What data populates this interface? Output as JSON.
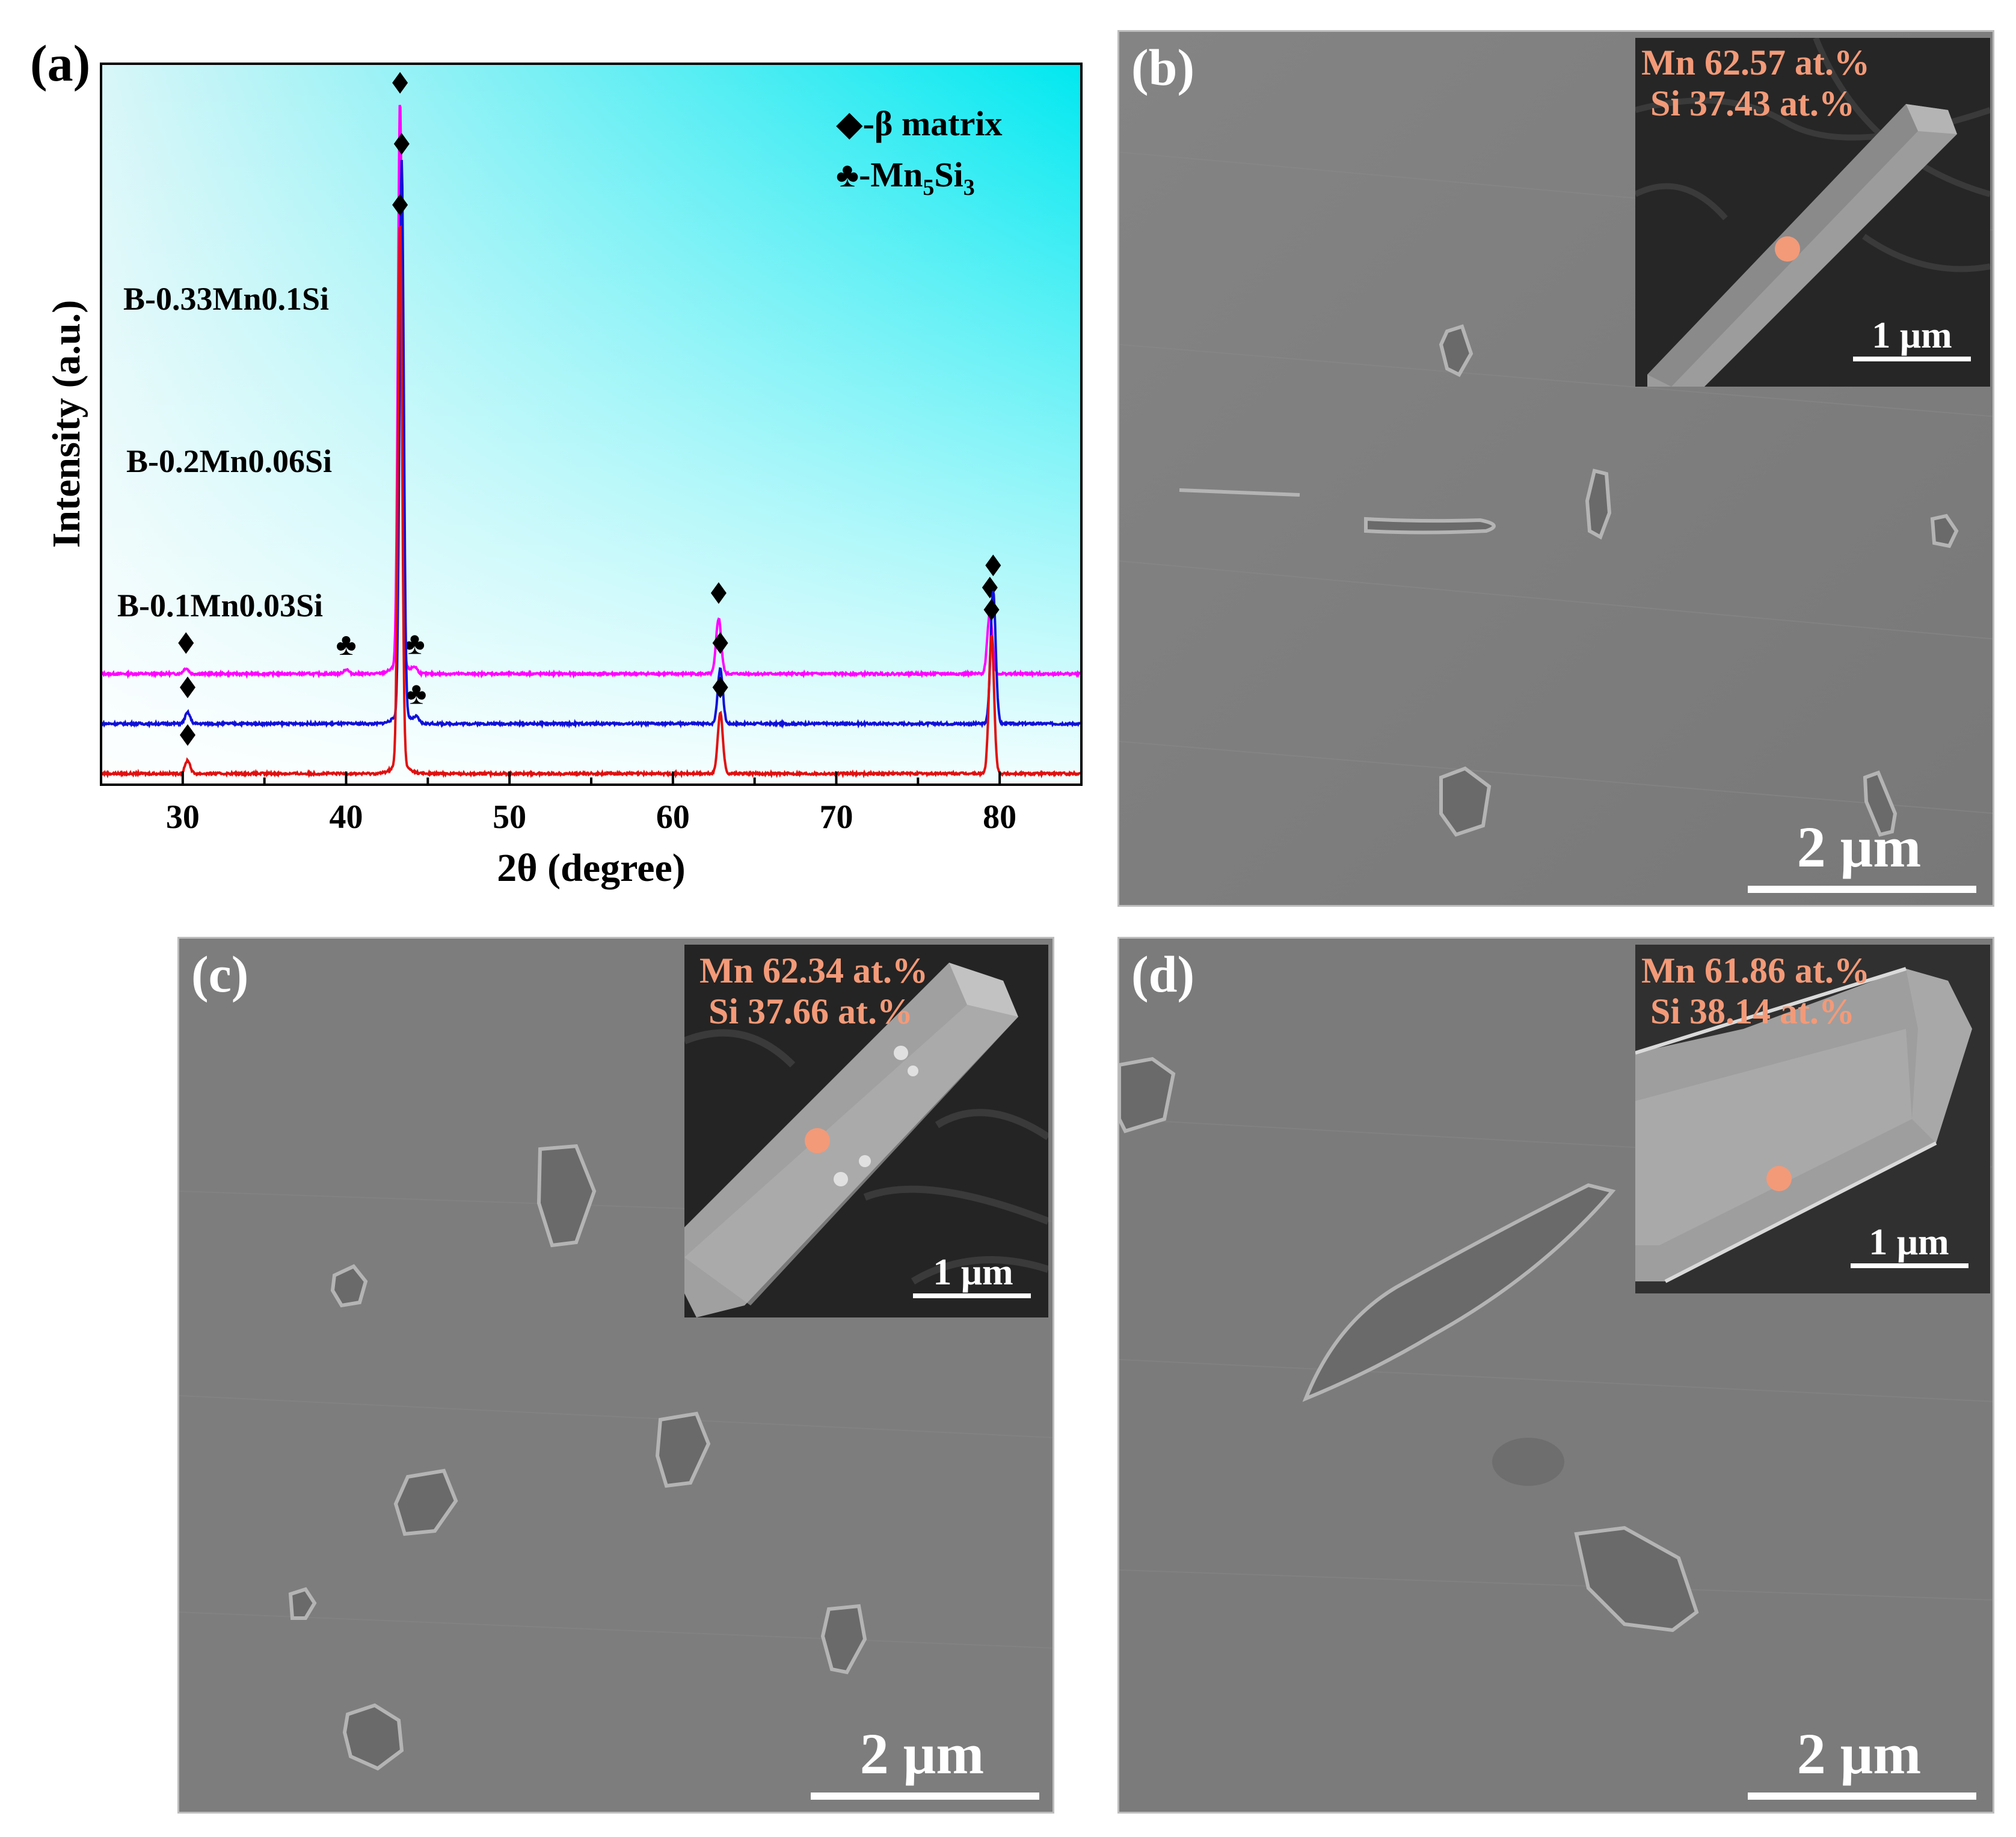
{
  "panels": {
    "a": {
      "label": "(a)",
      "legend": [
        {
          "symbol": "◆",
          "text": "-β matrix"
        },
        {
          "symbol": "♣",
          "text": "-Mn",
          "sub1": "5",
          "mid": "Si",
          "sub2": "3"
        }
      ]
    },
    "b": {
      "label": "(b)",
      "inset_line1": "Mn 62.57 at.%",
      "inset_line2": " Si 37.43 at.%",
      "inset_scale": "1 μm",
      "scale": "2 μm"
    },
    "c": {
      "label": "(c)",
      "inset_line1": "Mn 62.34 at.%",
      "inset_line2": " Si 37.66 at.%",
      "inset_scale": "1 μm",
      "scale": "2 μm"
    },
    "d": {
      "label": "(d)",
      "inset_line1": "Mn 61.86 at.%",
      "inset_line2": " Si 38.14 at.%",
      "inset_scale": "1 μm",
      "scale": "2 μm"
    }
  },
  "chart_data": {
    "type": "line",
    "xlabel": "2θ (degree)",
    "ylabel": "Intensity (a.u.)",
    "xlim": [
      25,
      85
    ],
    "xticks": [
      30,
      40,
      50,
      60,
      70,
      80
    ],
    "grid": false,
    "legend_position": "top-right",
    "background": {
      "top_left": "#d8f6f8",
      "top_right": "#00e8f0",
      "bottom_left": "#ffffff",
      "bottom_right": "#b8f4f8"
    },
    "series": [
      {
        "name": "B-0.33Mn0.1Si",
        "color": "#ff00ff",
        "baseline": 1.0,
        "peaks": [
          {
            "x": 30.2,
            "height": 0.05,
            "marker": "diamond"
          },
          {
            "x": 40.0,
            "height": 0.04,
            "marker": "club"
          },
          {
            "x": 43.3,
            "height": 5.1,
            "marker": "diamond"
          },
          {
            "x": 44.2,
            "height": 0.05,
            "marker": "club"
          },
          {
            "x": 62.8,
            "height": 0.5,
            "marker": "diamond"
          },
          {
            "x": 79.4,
            "height": 0.55,
            "marker": "diamond"
          }
        ]
      },
      {
        "name": "B-0.2Mn0.06Si",
        "color": "#1010d8",
        "baseline": 0.55,
        "peaks": [
          {
            "x": 30.3,
            "height": 0.1,
            "marker": "diamond"
          },
          {
            "x": 43.4,
            "height": 5.0,
            "marker": "diamond"
          },
          {
            "x": 44.3,
            "height": 0.05,
            "marker": "club"
          },
          {
            "x": 62.9,
            "height": 0.5,
            "marker": "diamond"
          },
          {
            "x": 79.6,
            "height": 1.2,
            "marker": "diamond"
          }
        ]
      },
      {
        "name": "B-0.1Mn0.03Si",
        "color": "#e01010",
        "baseline": 0.1,
        "peaks": [
          {
            "x": 30.3,
            "height": 0.12,
            "marker": "diamond"
          },
          {
            "x": 43.3,
            "height": 4.9,
            "marker": "diamond"
          },
          {
            "x": 62.9,
            "height": 0.55,
            "marker": "diamond"
          },
          {
            "x": 79.5,
            "height": 1.25,
            "marker": "diamond"
          }
        ]
      }
    ]
  }
}
